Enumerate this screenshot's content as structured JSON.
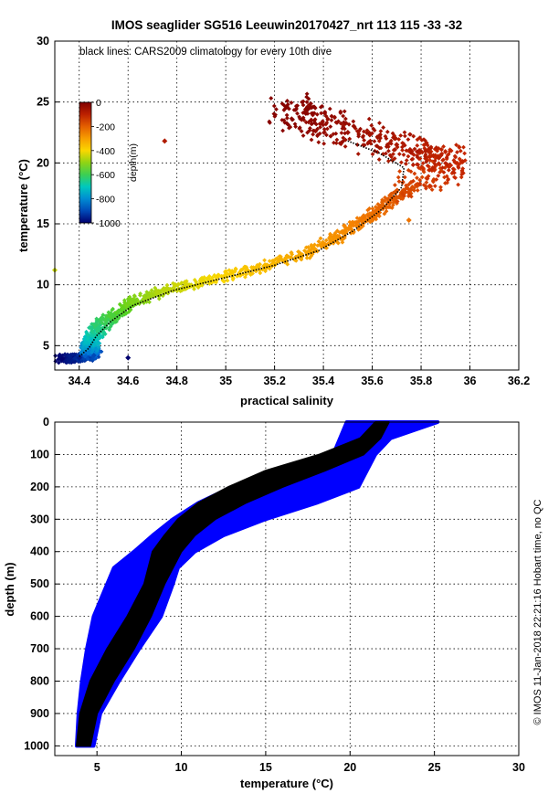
{
  "title": "IMOS seaglider SG516 Leeuwin20170427_nrt 113  115  -33  -32",
  "credit": "© IMOS 11-Jan-2018 22:21:16 Hobart time, no QC",
  "chart_data": [
    {
      "type": "scatter",
      "name": "ts-diagram",
      "annotation": "black lines: CARS2009 climatology for every 10th dive",
      "xlabel": "practical salinity",
      "ylabel": "temperature (°C)",
      "xlim": [
        34.3,
        36.2
      ],
      "ylim": [
        3,
        30
      ],
      "xticks": [
        "34.4",
        "34.6",
        "34.8",
        "35",
        "35.2",
        "35.4",
        "35.6",
        "35.8",
        "36",
        "36.2"
      ],
      "yticks": [
        "5",
        "10",
        "15",
        "20",
        "25",
        "30"
      ],
      "grid": true,
      "colorbar": {
        "label": "depth(m)",
        "ticks": [
          "0",
          "-200",
          "-400",
          "-600",
          "-800",
          "-1000"
        ],
        "range": [
          -1000,
          0
        ],
        "placement": "top-left"
      },
      "series": [
        {
          "name": "observations",
          "marker": "diamond",
          "points": [
            {
              "s": 34.33,
              "t": 3.9,
              "z": -1000
            },
            {
              "s": 34.4,
              "t": 4.0,
              "z": -960
            },
            {
              "s": 34.46,
              "t": 4.2,
              "z": -900
            },
            {
              "s": 34.44,
              "t": 4.8,
              "z": -800
            },
            {
              "s": 34.45,
              "t": 5.5,
              "z": -720
            },
            {
              "s": 34.48,
              "t": 6.5,
              "z": -640
            },
            {
              "s": 34.54,
              "t": 7.5,
              "z": -580
            },
            {
              "s": 34.63,
              "t": 8.7,
              "z": -520
            },
            {
              "s": 34.76,
              "t": 9.6,
              "z": -460
            },
            {
              "s": 34.93,
              "t": 10.4,
              "z": -410
            },
            {
              "s": 35.12,
              "t": 11.3,
              "z": -360
            },
            {
              "s": 35.3,
              "t": 12.4,
              "z": -320
            },
            {
              "s": 35.45,
              "t": 13.8,
              "z": -280
            },
            {
              "s": 35.57,
              "t": 15.3,
              "z": -240
            },
            {
              "s": 35.67,
              "t": 16.8,
              "z": -200
            },
            {
              "s": 35.78,
              "t": 18.2,
              "z": -160
            },
            {
              "s": 35.92,
              "t": 19.8,
              "z": -120
            },
            {
              "s": 35.85,
              "t": 20.6,
              "z": -100
            },
            {
              "s": 35.7,
              "t": 21.5,
              "z": -70
            },
            {
              "s": 35.5,
              "t": 22.5,
              "z": -45
            },
            {
              "s": 35.35,
              "t": 23.5,
              "z": -25
            },
            {
              "s": 35.25,
              "t": 24.6,
              "z": -10
            },
            {
              "s": 34.75,
              "t": 21.8,
              "z": -80
            },
            {
              "s": 34.3,
              "t": 11.2,
              "z": -450
            },
            {
              "s": 34.6,
              "t": 4.0,
              "z": -1000
            },
            {
              "s": 35.75,
              "t": 15.3,
              "z": -230
            },
            {
              "s": 35.97,
              "t": 20.1,
              "z": -110
            }
          ]
        },
        {
          "name": "CARS2009 climatology",
          "color": "#000000",
          "points": [
            {
              "s": 34.4,
              "t": 4.1
            },
            {
              "s": 34.44,
              "t": 4.8
            },
            {
              "s": 34.47,
              "t": 5.8
            },
            {
              "s": 34.53,
              "t": 7.0
            },
            {
              "s": 34.62,
              "t": 8.3
            },
            {
              "s": 34.78,
              "t": 9.5
            },
            {
              "s": 34.98,
              "t": 10.5
            },
            {
              "s": 35.2,
              "t": 11.6
            },
            {
              "s": 35.38,
              "t": 12.8
            },
            {
              "s": 35.52,
              "t": 14.4
            },
            {
              "s": 35.64,
              "t": 16.2
            },
            {
              "s": 35.72,
              "t": 18.0
            },
            {
              "s": 35.73,
              "t": 19.6
            },
            {
              "s": 35.63,
              "t": 20.8
            },
            {
              "s": 35.5,
              "t": 21.8
            }
          ]
        }
      ]
    },
    {
      "type": "line",
      "name": "depth-profile",
      "xlabel": "temperature (°C)",
      "ylabel": "depth (m)",
      "xlim": [
        2.5,
        30
      ],
      "ylim": [
        1030,
        0
      ],
      "xticks": [
        "5",
        "10",
        "15",
        "20",
        "25",
        "30"
      ],
      "yticks": [
        "0",
        "100",
        "200",
        "300",
        "400",
        "500",
        "600",
        "700",
        "800",
        "900",
        "1000"
      ],
      "grid": true,
      "series": [
        {
          "name": "observations",
          "color": "#0000ff",
          "min_t": [
            {
              "d": 0,
              "t": 19.8
            },
            {
              "d": 100,
              "t": 19.0
            },
            {
              "d": 150,
              "t": 15.5
            },
            {
              "d": 200,
              "t": 13.0
            },
            {
              "d": 250,
              "t": 11.0
            },
            {
              "d": 300,
              "t": 9.5
            },
            {
              "d": 350,
              "t": 8.3
            },
            {
              "d": 400,
              "t": 7.2
            },
            {
              "d": 450,
              "t": 6.0
            },
            {
              "d": 500,
              "t": 5.6
            },
            {
              "d": 600,
              "t": 4.8
            },
            {
              "d": 700,
              "t": 4.4
            },
            {
              "d": 800,
              "t": 4.1
            },
            {
              "d": 900,
              "t": 3.9
            },
            {
              "d": 1000,
              "t": 3.8
            }
          ],
          "max_t": [
            {
              "d": 0,
              "t": 25.2
            },
            {
              "d": 50,
              "t": 22.4
            },
            {
              "d": 100,
              "t": 21.5
            },
            {
              "d": 150,
              "t": 21.0
            },
            {
              "d": 200,
              "t": 20.5
            },
            {
              "d": 250,
              "t": 18.0
            },
            {
              "d": 300,
              "t": 15.0
            },
            {
              "d": 350,
              "t": 12.5
            },
            {
              "d": 400,
              "t": 10.8
            },
            {
              "d": 450,
              "t": 9.8
            },
            {
              "d": 500,
              "t": 9.5
            },
            {
              "d": 600,
              "t": 8.8
            },
            {
              "d": 700,
              "t": 7.5
            },
            {
              "d": 800,
              "t": 6.3
            },
            {
              "d": 900,
              "t": 5.2
            },
            {
              "d": 1000,
              "t": 4.8
            }
          ]
        },
        {
          "name": "CARS2009 climatology",
          "color": "#000000",
          "min_t": [
            {
              "d": 0,
              "t": 21.5
            },
            {
              "d": 50,
              "t": 20.6
            },
            {
              "d": 100,
              "t": 18.2
            },
            {
              "d": 150,
              "t": 15.0
            },
            {
              "d": 200,
              "t": 12.8
            },
            {
              "d": 250,
              "t": 11.0
            },
            {
              "d": 300,
              "t": 9.8
            },
            {
              "d": 350,
              "t": 9.0
            },
            {
              "d": 400,
              "t": 8.3
            },
            {
              "d": 500,
              "t": 7.8
            },
            {
              "d": 600,
              "t": 6.8
            },
            {
              "d": 700,
              "t": 5.6
            },
            {
              "d": 800,
              "t": 4.6
            },
            {
              "d": 900,
              "t": 4.0
            },
            {
              "d": 1000,
              "t": 3.8
            }
          ],
          "max_t": [
            {
              "d": 0,
              "t": 22.3
            },
            {
              "d": 50,
              "t": 21.8
            },
            {
              "d": 100,
              "t": 20.8
            },
            {
              "d": 150,
              "t": 18.5
            },
            {
              "d": 200,
              "t": 16.0
            },
            {
              "d": 250,
              "t": 13.8
            },
            {
              "d": 300,
              "t": 12.0
            },
            {
              "d": 350,
              "t": 10.8
            },
            {
              "d": 400,
              "t": 10.0
            },
            {
              "d": 500,
              "t": 9.0
            },
            {
              "d": 600,
              "t": 8.2
            },
            {
              "d": 700,
              "t": 7.2
            },
            {
              "d": 800,
              "t": 6.0
            },
            {
              "d": 900,
              "t": 5.0
            },
            {
              "d": 1000,
              "t": 4.6
            }
          ]
        }
      ]
    }
  ]
}
